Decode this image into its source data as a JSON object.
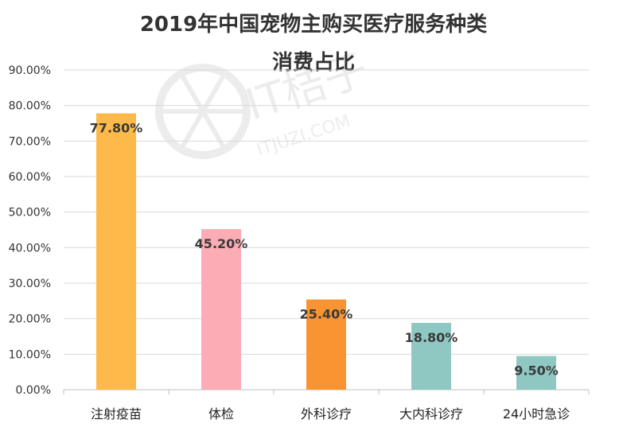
{
  "chart_data": {
    "type": "bar",
    "title": "2019年中国宠物主购买医疗服务种类",
    "subtitle": "消费占比",
    "categories": [
      "注射疫苗",
      "体检",
      "外科诊疗",
      "大内科诊疗",
      "24小时急诊"
    ],
    "values": [
      77.8,
      45.2,
      25.4,
      18.8,
      9.5
    ],
    "data_labels": [
      "77.80%",
      "45.20%",
      "25.40%",
      "18.80%",
      "9.50%"
    ],
    "bar_colors": [
      "#FDBA4B",
      "#FCACB4",
      "#F99433",
      "#8FC8C2",
      "#8FC8C2"
    ],
    "ylim": [
      0,
      90
    ],
    "yticks": [
      "0.00%",
      "10.00%",
      "20.00%",
      "30.00%",
      "40.00%",
      "50.00%",
      "60.00%",
      "70.00%",
      "80.00%",
      "90.00%"
    ],
    "xlabel": "",
    "ylabel": "",
    "grid": true,
    "legend": "none"
  },
  "watermark": {
    "cn": "IT桔子",
    "en": "ITJUZI.COM"
  }
}
